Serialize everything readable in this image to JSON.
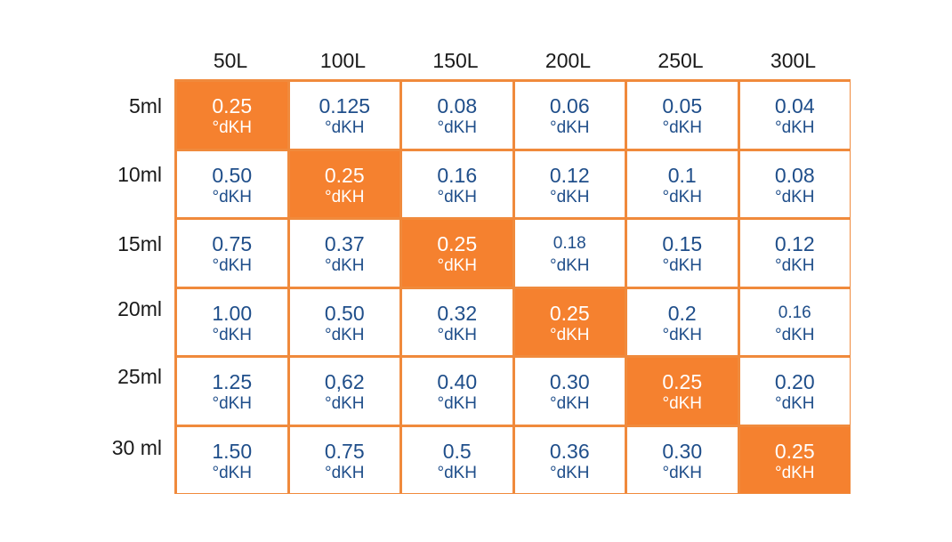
{
  "table": {
    "columns": [
      "50L",
      "100L",
      "150L",
      "200L",
      "250L",
      "300L"
    ],
    "rows": [
      {
        "label": "5ml",
        "values": [
          "0.25",
          "0.125",
          "0.08",
          "0.06",
          "0.05",
          "0.04"
        ]
      },
      {
        "label": "10ml",
        "values": [
          "0.50",
          "0.25",
          "0.16",
          "0.12",
          "0.1",
          "0.08"
        ]
      },
      {
        "label": "15ml",
        "values": [
          "0.75",
          "0.37",
          "0.25",
          "0.18",
          "0.15",
          "0.12"
        ]
      },
      {
        "label": "20ml",
        "values": [
          "1.00",
          "0.50",
          "0.32",
          "0.25",
          "0.2",
          "0.16"
        ]
      },
      {
        "label": "25ml",
        "values": [
          "1.25",
          "0,62",
          "0.40",
          "0.30",
          "0.25",
          "0.20"
        ]
      },
      {
        "label": "30 ml",
        "values": [
          "1.50",
          "0.75",
          "0.5",
          "0.36",
          "0.30",
          "0.25"
        ]
      }
    ],
    "unit": "°dKH",
    "highlight_value": "0.25"
  },
  "colors": {
    "accent": "#f5812f",
    "border": "#f08a3c",
    "value_text": "#1f4e8a",
    "label_text": "#1a1a1a"
  }
}
